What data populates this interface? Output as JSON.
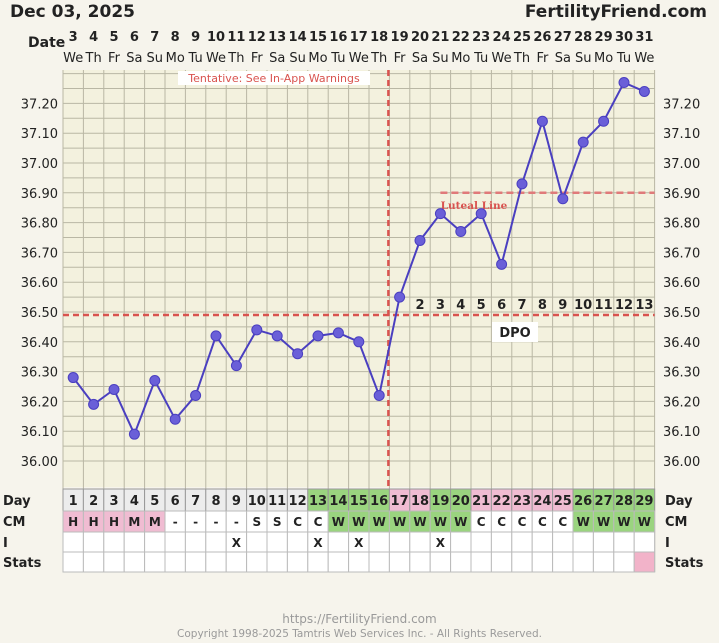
{
  "header": {
    "date": "Dec 03, 2025",
    "brand": "FertilityFriend.com"
  },
  "footer": {
    "url": "https://FertilityFriend.com",
    "copyright": "Copyright 1998-2025 Tamtris Web Services Inc. - All Rights Reserved."
  },
  "labels": {
    "date_row": "Date",
    "day_row": "Day",
    "cm_row": "CM",
    "i_row": "I",
    "stats_row": "Stats",
    "tentative": "Tentative: See In-App Warnings",
    "luteal": "Luteal Line",
    "dpo": "DPO"
  },
  "colors": {
    "line": "#4a3fc0",
    "point": "#6a5fd8",
    "red_dash": "#d9534f",
    "luteal_dash": "#e07a7a",
    "grid": "#b9b7a4",
    "plot_bg": "#f3f1de",
    "cm_pink": "#f0bcd2",
    "day_green": "#9ad47f",
    "stats_pink": "#f2b3c9"
  },
  "chart_data": {
    "type": "line",
    "ylim": [
      35.95,
      37.3
    ],
    "y_ticks": [
      "36.00",
      "36.10",
      "36.20",
      "36.30",
      "36.40",
      "36.50",
      "36.60",
      "36.70",
      "36.80",
      "36.90",
      "37.00",
      "37.10",
      "37.20"
    ],
    "date_numbers": [
      "3",
      "4",
      "5",
      "6",
      "7",
      "8",
      "9",
      "10",
      "11",
      "12",
      "13",
      "14",
      "15",
      "16",
      "17",
      "18",
      "19",
      "20",
      "21",
      "22",
      "23",
      "24",
      "25",
      "26",
      "27",
      "28",
      "29",
      "30",
      "31"
    ],
    "weekdays": [
      "We",
      "Th",
      "Fr",
      "Sa",
      "Su",
      "Mo",
      "Tu",
      "We",
      "Th",
      "Fr",
      "Sa",
      "Su",
      "Mo",
      "Tu",
      "We",
      "Th",
      "Fr",
      "Sa",
      "Su",
      "Mo",
      "Tu",
      "We",
      "Th",
      "Fr",
      "Sa",
      "Su",
      "Mo",
      "Tu",
      "We"
    ],
    "cycle_days": [
      "1",
      "2",
      "3",
      "4",
      "5",
      "6",
      "7",
      "8",
      "9",
      "10",
      "11",
      "12",
      "13",
      "14",
      "15",
      "16",
      "17",
      "18",
      "19",
      "20",
      "21",
      "22",
      "23",
      "24",
      "25",
      "26",
      "27",
      "28",
      "29"
    ],
    "series": [
      {
        "values": [
          36.28,
          36.19,
          36.24,
          36.09,
          36.27,
          36.14,
          36.22,
          36.42,
          36.32,
          36.44,
          36.42,
          36.36,
          36.42,
          36.43,
          36.4,
          36.22,
          36.55,
          36.74,
          36.83,
          36.77,
          36.83,
          36.66,
          36.93,
          37.14,
          36.88,
          37.07,
          37.14,
          37.27,
          37.24
        ]
      }
    ],
    "coverline": 36.49,
    "ovulation_day": 16,
    "luteal_line": 36.9,
    "luteal_start_day": 19,
    "dpo": [
      "2",
      "3",
      "4",
      "5",
      "6",
      "7",
      "8",
      "9",
      "10",
      "11",
      "12",
      "13"
    ],
    "cm": [
      "H",
      "H",
      "H",
      "M",
      "M",
      "-",
      "-",
      "-",
      "-",
      "S",
      "S",
      "C",
      "C",
      "W",
      "W",
      "W",
      "W",
      "W",
      "W",
      "W",
      "C",
      "C",
      "C",
      "C",
      "C",
      "W",
      "W",
      "W",
      "W"
    ],
    "cm_pink_days": [
      1,
      2,
      3,
      4,
      5
    ],
    "intercourse": [
      "",
      "",
      "",
      "",
      "",
      "",
      "",
      "",
      "X",
      "",
      "",
      "",
      "X",
      "",
      "X",
      "",
      "",
      "",
      "X",
      "",
      "",
      "",
      "",
      "",
      "",
      "",
      "",
      "",
      ""
    ],
    "green_days": [
      13,
      14,
      15,
      16,
      19,
      20,
      26,
      27,
      28,
      29
    ],
    "pink_days": [
      17,
      18,
      21,
      22,
      23,
      24,
      25
    ],
    "stats_marked": [
      29
    ]
  }
}
